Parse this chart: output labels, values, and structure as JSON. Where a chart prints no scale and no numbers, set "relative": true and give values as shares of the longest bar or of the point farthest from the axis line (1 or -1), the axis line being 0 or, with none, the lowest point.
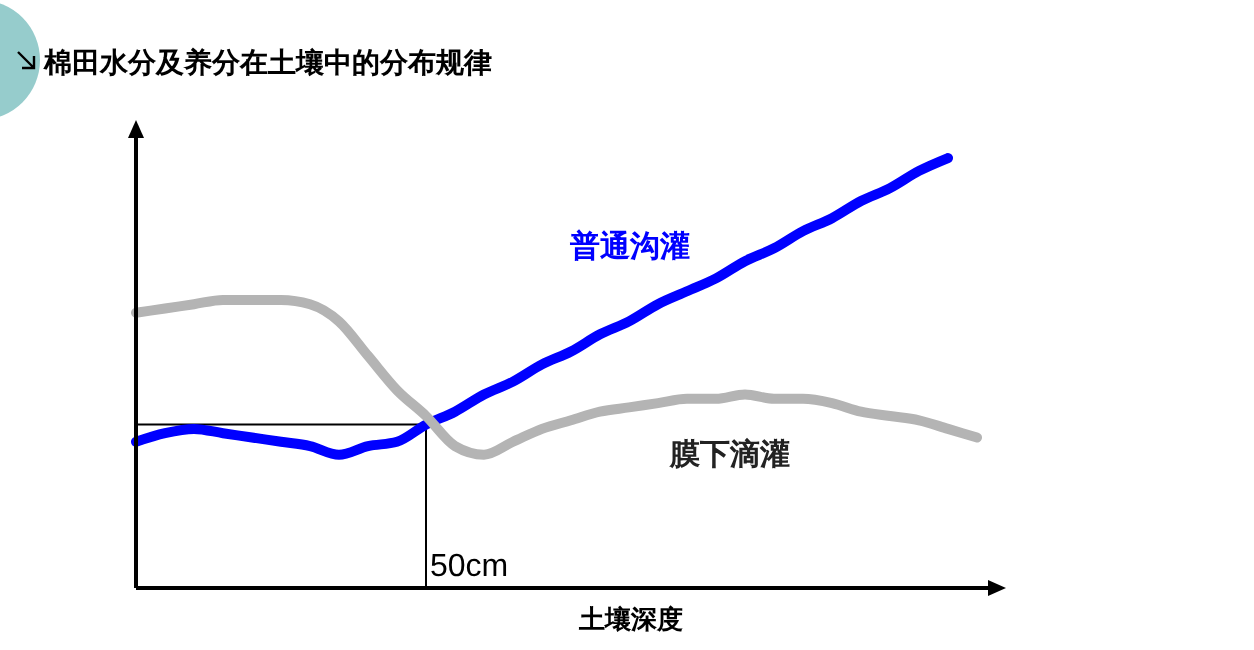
{
  "chart_data": {
    "type": "line",
    "title": "棉田水分及养分在土壤中的分布规律",
    "xlabel": "土壤深度",
    "relative": true,
    "legend": false,
    "line_style": "solid",
    "marker": "none",
    "categories": [
      null,
      null,
      null,
      null,
      null,
      null,
      null,
      null,
      null,
      null,
      null,
      null,
      null,
      null,
      null,
      null,
      null,
      null,
      null,
      null,
      null,
      null,
      null,
      null,
      null,
      null,
      null,
      null,
      null,
      null
    ],
    "annotations": [
      "50cm"
    ],
    "ref_lines": [
      {
        "axis": "y",
        "value": 0.38,
        "color": "#000000"
      }
    ],
    "series": [
      {
        "name": "普通沟灌",
        "color": "#0000ff",
        "values": [
          0.34,
          0.36,
          0.37,
          0.36,
          0.35,
          0.34,
          0.33,
          0.31,
          0.33,
          0.34,
          0.38,
          0.41,
          0.45,
          0.48,
          0.52,
          0.55,
          0.59,
          0.62,
          0.66,
          0.69,
          0.72,
          0.76,
          0.79,
          0.83,
          0.86,
          0.9,
          0.93,
          0.97,
          1,
          null
        ]
      },
      {
        "name": "膜下滴灌",
        "color": "#b4b4b4",
        "values": [
          0.64,
          0.65,
          0.66,
          0.67,
          0.67,
          0.67,
          0.66,
          0.62,
          0.54,
          0.46,
          0.4,
          0.33,
          0.31,
          0.34,
          0.37,
          0.39,
          0.41,
          0.42,
          0.43,
          0.44,
          0.44,
          0.45,
          0.44,
          0.44,
          0.43,
          0.41,
          0.4,
          0.39,
          0.37,
          0.35
        ]
      }
    ]
  }
}
